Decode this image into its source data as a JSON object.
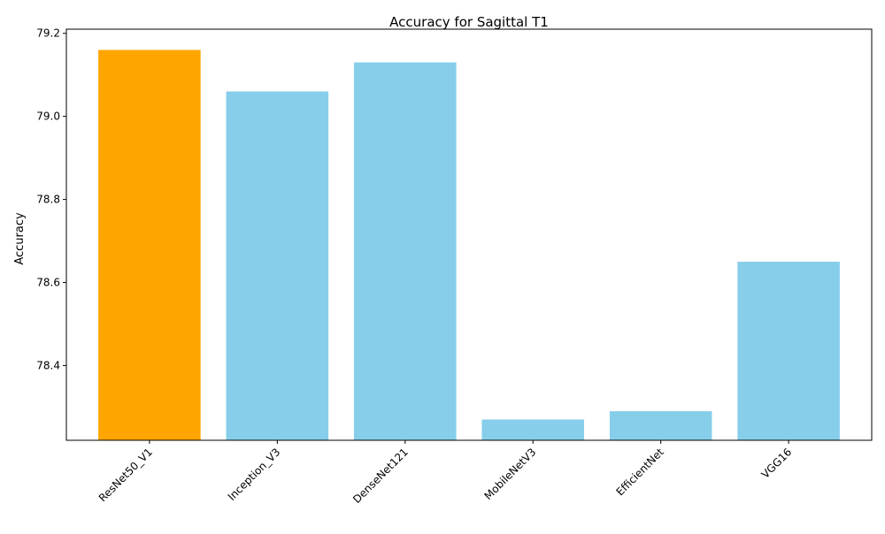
{
  "chart_data": {
    "type": "bar",
    "title": "Accuracy for Sagittal T1",
    "xlabel": "",
    "ylabel": "Accuracy",
    "categories": [
      "ResNet50_V1",
      "Inception_V3",
      "DenseNet121",
      "MobileNetV3",
      "EfficientNet",
      "VGG16"
    ],
    "values": [
      79.16,
      79.06,
      79.13,
      78.27,
      78.29,
      78.65
    ],
    "colors": [
      "#FFA500",
      "#87CEEB",
      "#87CEEB",
      "#87CEEB",
      "#87CEEB",
      "#87CEEB"
    ],
    "highlight_color": "#FFA500",
    "default_color": "#87CEEB",
    "ylim": [
      78.22,
      79.21
    ],
    "yticks": [
      78.4,
      78.6,
      78.8,
      79.0,
      79.2
    ],
    "ytick_labels": [
      "78.4",
      "78.6",
      "78.8",
      "79.0",
      "79.2"
    ],
    "grid": false,
    "xtick_rotation_deg": 45
  }
}
